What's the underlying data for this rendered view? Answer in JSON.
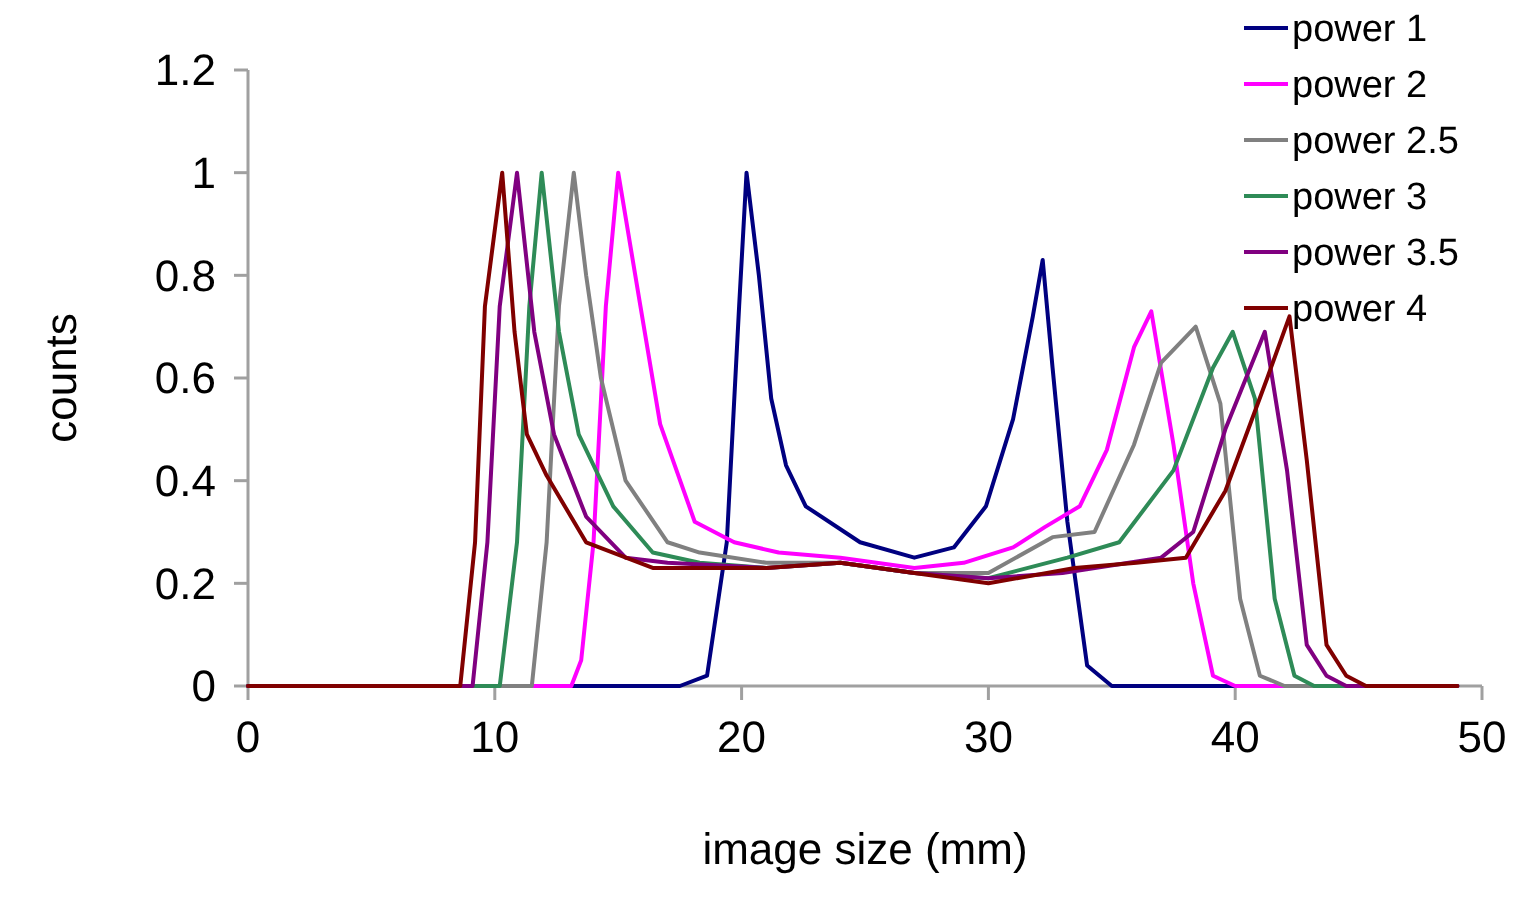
{
  "chart_data": {
    "type": "line",
    "xlabel": "image size (mm)",
    "ylabel": "counts",
    "xlim": [
      0,
      50
    ],
    "ylim": [
      0,
      1.2
    ],
    "xticks": [
      0,
      10,
      20,
      30,
      40,
      50
    ],
    "yticks": [
      0,
      0.2,
      0.4,
      0.6,
      0.8,
      1,
      1.2
    ],
    "grid": false,
    "legend": "top right",
    "marker": "none",
    "line_style": "solid",
    "series": [
      {
        "name": "power 1",
        "color": "#000080",
        "x": [
          0,
          17.5,
          18.6,
          19.4,
          19.9,
          20.2,
          20.7,
          21.2,
          21.8,
          22.6,
          24.8,
          27,
          28.6,
          29.9,
          31,
          31.8,
          32.2,
          32.6,
          33.2,
          34,
          35,
          49
        ],
        "values": [
          0,
          0,
          0.02,
          0.28,
          0.74,
          1,
          0.8,
          0.56,
          0.43,
          0.35,
          0.28,
          0.25,
          0.27,
          0.35,
          0.52,
          0.72,
          0.83,
          0.62,
          0.32,
          0.04,
          0,
          0
        ]
      },
      {
        "name": "power 2",
        "color": "#ff00ff",
        "x": [
          0,
          13.1,
          13.5,
          14,
          14.5,
          15,
          15.9,
          16.7,
          18.1,
          19.7,
          21.5,
          24,
          27,
          29,
          31,
          32.3,
          33.7,
          34.8,
          35.9,
          36.6,
          37.5,
          38.3,
          39.1,
          40,
          49
        ],
        "values": [
          0,
          0,
          0.05,
          0.28,
          0.74,
          1,
          0.74,
          0.51,
          0.32,
          0.28,
          0.26,
          0.25,
          0.23,
          0.24,
          0.27,
          0.31,
          0.35,
          0.46,
          0.66,
          0.73,
          0.47,
          0.2,
          0.02,
          0,
          0
        ]
      },
      {
        "name": "power 2.5",
        "color": "#808080",
        "x": [
          0,
          11.5,
          12.1,
          12.6,
          13.2,
          13.7,
          14.3,
          15.3,
          17,
          18.3,
          21,
          24,
          27,
          30,
          32.6,
          34.3,
          35.9,
          37,
          38.4,
          39.4,
          40.2,
          41,
          42,
          49
        ],
        "values": [
          0,
          0,
          0.28,
          0.74,
          1,
          0.8,
          0.6,
          0.4,
          0.28,
          0.26,
          0.24,
          0.24,
          0.22,
          0.22,
          0.29,
          0.3,
          0.47,
          0.63,
          0.7,
          0.55,
          0.17,
          0.02,
          0,
          0
        ]
      },
      {
        "name": "power 3",
        "color": "#2e8b57",
        "x": [
          0,
          10.2,
          10.9,
          11.4,
          11.9,
          12.6,
          13.4,
          14.8,
          16.4,
          18.3,
          21,
          24,
          27,
          30,
          33.2,
          35.3,
          37.5,
          39.1,
          39.9,
          40.8,
          41.6,
          42.4,
          43.2,
          49
        ],
        "values": [
          0,
          0,
          0.28,
          0.74,
          1,
          0.69,
          0.49,
          0.35,
          0.26,
          0.24,
          0.23,
          0.24,
          0.22,
          0.21,
          0.25,
          0.28,
          0.42,
          0.62,
          0.69,
          0.56,
          0.17,
          0.02,
          0,
          0
        ]
      },
      {
        "name": "power 3.5",
        "color": "#800080",
        "x": [
          0,
          9.1,
          9.7,
          10.2,
          10.9,
          11.6,
          12.4,
          13.7,
          15.3,
          17,
          21,
          24,
          27,
          30,
          33,
          37,
          38.3,
          39.6,
          41.2,
          42.1,
          42.9,
          43.7,
          44.5,
          49
        ],
        "values": [
          0,
          0,
          0.28,
          0.74,
          1,
          0.69,
          0.49,
          0.33,
          0.25,
          0.24,
          0.23,
          0.24,
          0.22,
          0.21,
          0.22,
          0.25,
          0.3,
          0.5,
          0.69,
          0.42,
          0.08,
          0.02,
          0,
          0
        ]
      },
      {
        "name": "power 4",
        "color": "#800000",
        "x": [
          0,
          8.6,
          9.2,
          9.6,
          10.3,
          10.8,
          11.3,
          12.1,
          13.7,
          16.4,
          19,
          21,
          24,
          27,
          30,
          33.5,
          36,
          38,
          39.6,
          41.3,
          42.2,
          42.9,
          43.7,
          44.5,
          45.3,
          49
        ],
        "values": [
          0,
          0,
          0.28,
          0.74,
          1,
          0.69,
          0.49,
          0.41,
          0.28,
          0.23,
          0.23,
          0.23,
          0.24,
          0.22,
          0.2,
          0.23,
          0.24,
          0.25,
          0.38,
          0.6,
          0.72,
          0.44,
          0.08,
          0.02,
          0,
          0
        ]
      }
    ]
  }
}
